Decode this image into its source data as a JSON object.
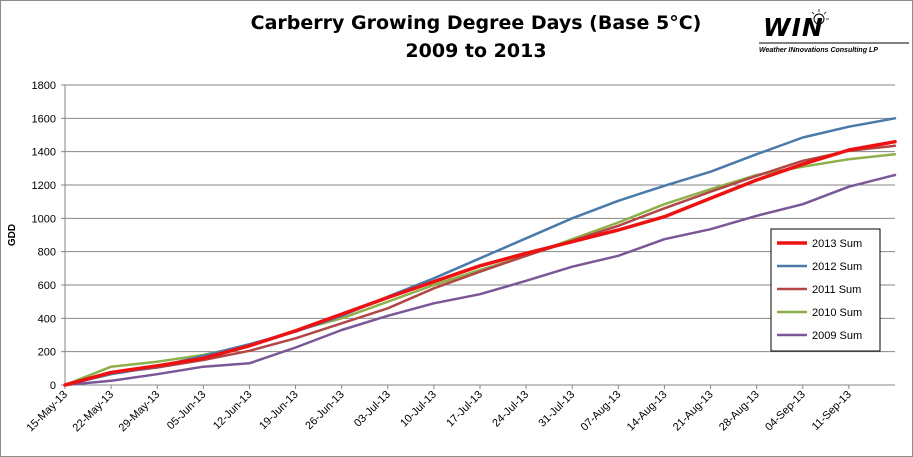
{
  "title_line1": "Carberry Growing  Degree Days (Base 5°C)",
  "title_line2": "2009 to 2013",
  "logo": {
    "mark": "WIN",
    "subtitle": "Weather INnovations Consulting LP"
  },
  "chart_data": {
    "type": "line",
    "xlabel": "",
    "ylabel": "GDD",
    "ylim": [
      0,
      1800
    ],
    "yticks": [
      0,
      200,
      400,
      600,
      800,
      1000,
      1200,
      1400,
      1600,
      1800
    ],
    "x_dates": [
      "15-May-13",
      "22-May-13",
      "29-May-13",
      "05-Jun-13",
      "12-Jun-13",
      "19-Jun-13",
      "26-Jun-13",
      "03-Jul-13",
      "10-Jul-13",
      "17-Jul-13",
      "24-Jul-13",
      "31-Jul-13",
      "07-Aug-13",
      "14-Aug-13",
      "21-Aug-13",
      "28-Aug-13",
      "04-Sep-13",
      "11-Sep-13"
    ],
    "x_day_range": [
      "15-May-13",
      "18-Sep-13"
    ],
    "grid": "horizontal",
    "legend_position": "right",
    "series": [
      {
        "name": "2013 Sum",
        "color": "#ee1111",
        "width": 3.5,
        "points": [
          [
            "15-May-13",
            0
          ],
          [
            "22-May-13",
            75
          ],
          [
            "29-May-13",
            115
          ],
          [
            "05-Jun-13",
            160
          ],
          [
            "12-Jun-13",
            235
          ],
          [
            "19-Jun-13",
            325
          ],
          [
            "26-Jun-13",
            425
          ],
          [
            "03-Jul-13",
            525
          ],
          [
            "10-Jul-13",
            620
          ],
          [
            "17-Jul-13",
            715
          ],
          [
            "24-Jul-13",
            790
          ],
          [
            "31-Jul-13",
            860
          ],
          [
            "07-Aug-13",
            930
          ],
          [
            "14-Aug-13",
            1010
          ],
          [
            "21-Aug-13",
            1120
          ],
          [
            "28-Aug-13",
            1230
          ],
          [
            "04-Sep-13",
            1325
          ],
          [
            "11-Sep-13",
            1410
          ],
          [
            "18-Sep-13",
            1460
          ]
        ]
      },
      {
        "name": "2012 Sum",
        "color": "#4a7aaa",
        "width": 2.5,
        "points": [
          [
            "15-May-13",
            0
          ],
          [
            "22-May-13",
            65
          ],
          [
            "29-May-13",
            110
          ],
          [
            "05-Jun-13",
            175
          ],
          [
            "12-Jun-13",
            245
          ],
          [
            "19-Jun-13",
            320
          ],
          [
            "26-Jun-13",
            415
          ],
          [
            "03-Jul-13",
            530
          ],
          [
            "10-Jul-13",
            640
          ],
          [
            "17-Jul-13",
            760
          ],
          [
            "24-Jul-13",
            880
          ],
          [
            "31-Jul-13",
            1000
          ],
          [
            "07-Aug-13",
            1105
          ],
          [
            "14-Aug-13",
            1195
          ],
          [
            "21-Aug-13",
            1280
          ],
          [
            "28-Aug-13",
            1385
          ],
          [
            "04-Sep-13",
            1485
          ],
          [
            "11-Sep-13",
            1550
          ],
          [
            "18-Sep-13",
            1600
          ]
        ]
      },
      {
        "name": "2011 Sum",
        "color": "#b24646",
        "width": 2.5,
        "points": [
          [
            "15-May-13",
            0
          ],
          [
            "22-May-13",
            70
          ],
          [
            "29-May-13",
            105
          ],
          [
            "05-Jun-13",
            150
          ],
          [
            "12-Jun-13",
            205
          ],
          [
            "19-Jun-13",
            280
          ],
          [
            "26-Jun-13",
            370
          ],
          [
            "03-Jul-13",
            460
          ],
          [
            "10-Jul-13",
            580
          ],
          [
            "17-Jul-13",
            680
          ],
          [
            "24-Jul-13",
            775
          ],
          [
            "31-Jul-13",
            865
          ],
          [
            "07-Aug-13",
            955
          ],
          [
            "14-Aug-13",
            1060
          ],
          [
            "21-Aug-13",
            1160
          ],
          [
            "28-Aug-13",
            1255
          ],
          [
            "04-Sep-13",
            1345
          ],
          [
            "11-Sep-13",
            1405
          ],
          [
            "18-Sep-13",
            1435
          ]
        ]
      },
      {
        "name": "2010 Sum",
        "color": "#8db04a",
        "width": 2.5,
        "points": [
          [
            "15-May-13",
            0
          ],
          [
            "22-May-13",
            110
          ],
          [
            "29-May-13",
            140
          ],
          [
            "05-Jun-13",
            180
          ],
          [
            "12-Jun-13",
            240
          ],
          [
            "19-Jun-13",
            325
          ],
          [
            "26-Jun-13",
            400
          ],
          [
            "03-Jul-13",
            500
          ],
          [
            "10-Jul-13",
            600
          ],
          [
            "17-Jul-13",
            690
          ],
          [
            "24-Jul-13",
            775
          ],
          [
            "31-Jul-13",
            875
          ],
          [
            "07-Aug-13",
            975
          ],
          [
            "14-Aug-13",
            1085
          ],
          [
            "21-Aug-13",
            1175
          ],
          [
            "28-Aug-13",
            1260
          ],
          [
            "04-Sep-13",
            1310
          ],
          [
            "11-Sep-13",
            1355
          ],
          [
            "18-Sep-13",
            1385
          ]
        ]
      },
      {
        "name": "2009 Sum",
        "color": "#7a5796",
        "width": 2.5,
        "points": [
          [
            "15-May-13",
            0
          ],
          [
            "22-May-13",
            25
          ],
          [
            "29-May-13",
            65
          ],
          [
            "05-Jun-13",
            110
          ],
          [
            "12-Jun-13",
            130
          ],
          [
            "19-Jun-13",
            225
          ],
          [
            "26-Jun-13",
            330
          ],
          [
            "03-Jul-13",
            415
          ],
          [
            "10-Jul-13",
            490
          ],
          [
            "17-Jul-13",
            545
          ],
          [
            "24-Jul-13",
            625
          ],
          [
            "31-Jul-13",
            710
          ],
          [
            "07-Aug-13",
            775
          ],
          [
            "14-Aug-13",
            875
          ],
          [
            "21-Aug-13",
            935
          ],
          [
            "28-Aug-13",
            1015
          ],
          [
            "04-Sep-13",
            1085
          ],
          [
            "11-Sep-13",
            1190
          ],
          [
            "18-Sep-13",
            1260
          ]
        ]
      }
    ]
  }
}
